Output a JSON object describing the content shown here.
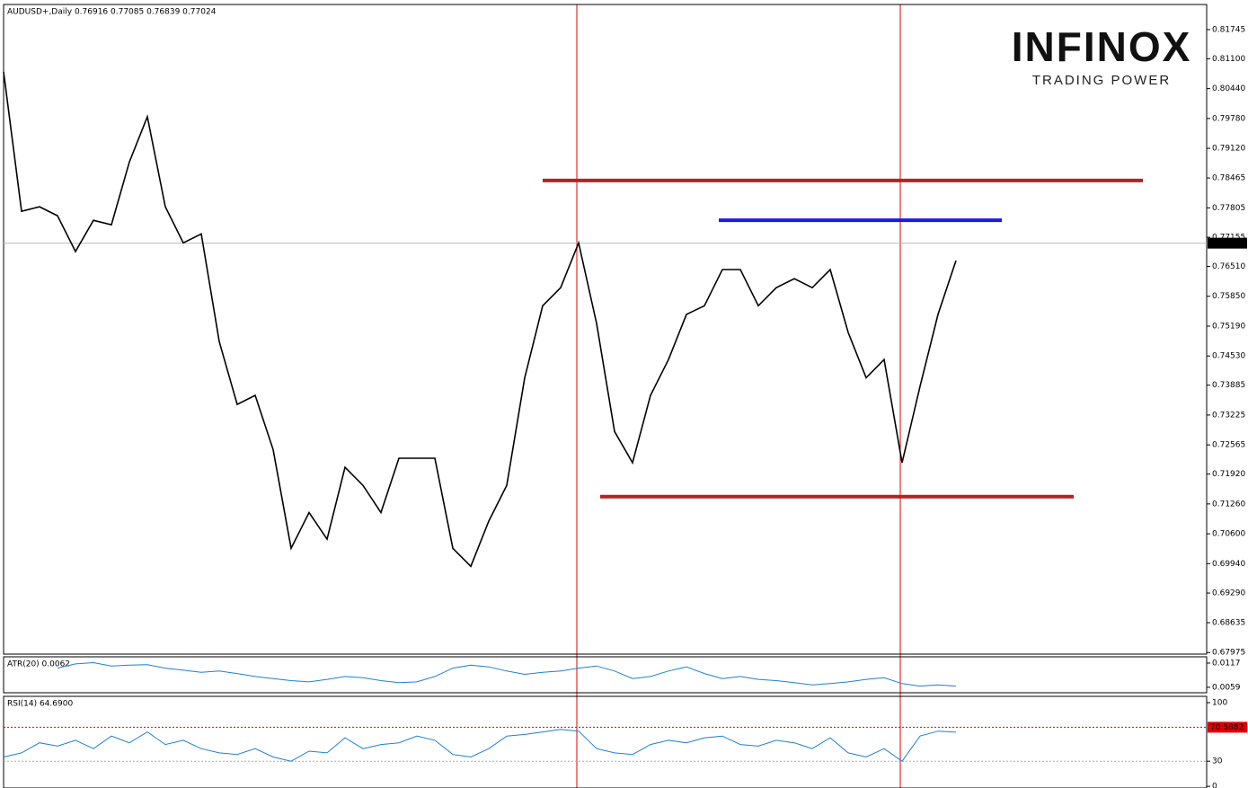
{
  "chart_data": [
    {
      "type": "line",
      "title": "AUDUSD+,Daily  0.76916 0.77085 0.76839 0.77024",
      "series": [
        {
          "name": "AUDUSD+",
          "color": "#000000",
          "values": [
            0.8081,
            0.7773,
            0.7783,
            0.7763,
            0.7684,
            0.7753,
            0.7743,
            0.7882,
            0.7982,
            0.7783,
            0.7703,
            0.7723,
            0.7485,
            0.7346,
            0.7366,
            0.7246,
            0.7028,
            0.7107,
            0.7048,
            0.7207,
            0.7167,
            0.7107,
            0.7227,
            0.7227,
            0.7227,
            0.7028,
            0.6988,
            0.7088,
            0.7167,
            0.7405,
            0.7564,
            0.7604,
            0.7703,
            0.7525,
            0.7286,
            0.7217,
            0.7366,
            0.7445,
            0.7545,
            0.7564,
            0.7644,
            0.7644,
            0.7564,
            0.7604,
            0.7624,
            0.7604,
            0.7644,
            0.7505,
            0.7405,
            0.7445,
            0.7217,
            0.7386,
            0.7545,
            0.7664
          ]
        }
      ],
      "ylim": [
        0.6794,
        0.823
      ],
      "yticks": [
        0.81745,
        {
          "value": 0.811,
          "label": "0.81100"
        },
        {
          "value": 0.8044,
          "label": "0.80440"
        },
        {
          "value": 0.7978,
          "label": "0.79780"
        },
        {
          "value": 0.7912,
          "label": "0.79120"
        },
        0.78465,
        0.77805,
        0.77155,
        {
          "value": 0.7651,
          "label": "0.76510"
        },
        {
          "value": 0.7585,
          "label": "0.75850"
        },
        {
          "value": 0.7519,
          "label": "0.75190"
        },
        {
          "value": 0.7453,
          "label": "0.74530"
        },
        0.73885,
        0.73225,
        0.72565,
        {
          "value": 0.7192,
          "label": "0.71920"
        },
        {
          "value": 0.7126,
          "label": "0.71260"
        },
        {
          "value": 0.706,
          "label": "0.70600"
        },
        {
          "value": 0.6994,
          "label": "0.69940"
        },
        {
          "value": 0.6929,
          "label": "0.69290"
        },
        0.68635,
        0.67975
      ],
      "last_price": 0.77024,
      "levels": [
        {
          "value": 0.7841,
          "color": "#b22222"
        },
        {
          "value": 0.7142,
          "color": "#b22222"
        },
        {
          "value": 0.7753,
          "color": "#1a1ae6"
        }
      ]
    },
    {
      "type": "line",
      "title": "ATR(20) 0.0062",
      "series": [
        {
          "name": "ATR(20)",
          "color": "#1e7fd8",
          "values": [
            null,
            null,
            null,
            0.0105,
            0.0115,
            0.0118,
            0.011,
            0.0112,
            0.0113,
            0.0105,
            0.01,
            0.0095,
            0.0098,
            0.0092,
            0.0085,
            0.008,
            0.0075,
            0.0072,
            0.0078,
            0.0085,
            0.0082,
            0.0075,
            0.007,
            0.0072,
            0.0085,
            0.0105,
            0.0112,
            0.0108,
            0.0098,
            0.009,
            0.0095,
            0.0098,
            0.0105,
            0.011,
            0.0098,
            0.008,
            0.0085,
            0.0098,
            0.0108,
            0.0092,
            0.008,
            0.0085,
            0.0078,
            0.0075,
            0.007,
            0.0065,
            0.0068,
            0.0072,
            0.0078,
            0.0082,
            0.0068,
            0.0062,
            0.0065,
            0.0062
          ]
        }
      ],
      "ylim": [
        0.0046,
        0.0132
      ],
      "yticks": [
        0.0117,
        0.0059
      ]
    },
    {
      "type": "line",
      "title": "RSI(14) 64.6900",
      "series": [
        {
          "name": "RSI(14)",
          "color": "#1e7fd8",
          "values": [
            35,
            40,
            52,
            48,
            55,
            45,
            60,
            52,
            65,
            50,
            55,
            45,
            40,
            38,
            45,
            35,
            30,
            42,
            40,
            58,
            45,
            50,
            52,
            60,
            55,
            38,
            35,
            45,
            60,
            62,
            65,
            68,
            66,
            45,
            40,
            38,
            50,
            55,
            52,
            58,
            60,
            50,
            48,
            55,
            52,
            45,
            58,
            40,
            35,
            45,
            30,
            60,
            66,
            64.69
          ]
        }
      ],
      "ylim": [
        -2,
        107.5
      ],
      "yticks": [
        100,
        30,
        0
      ],
      "level": 70.5882
    }
  ],
  "logo": {
    "name": "INFINOX",
    "tagline": "TRADING POWER"
  }
}
